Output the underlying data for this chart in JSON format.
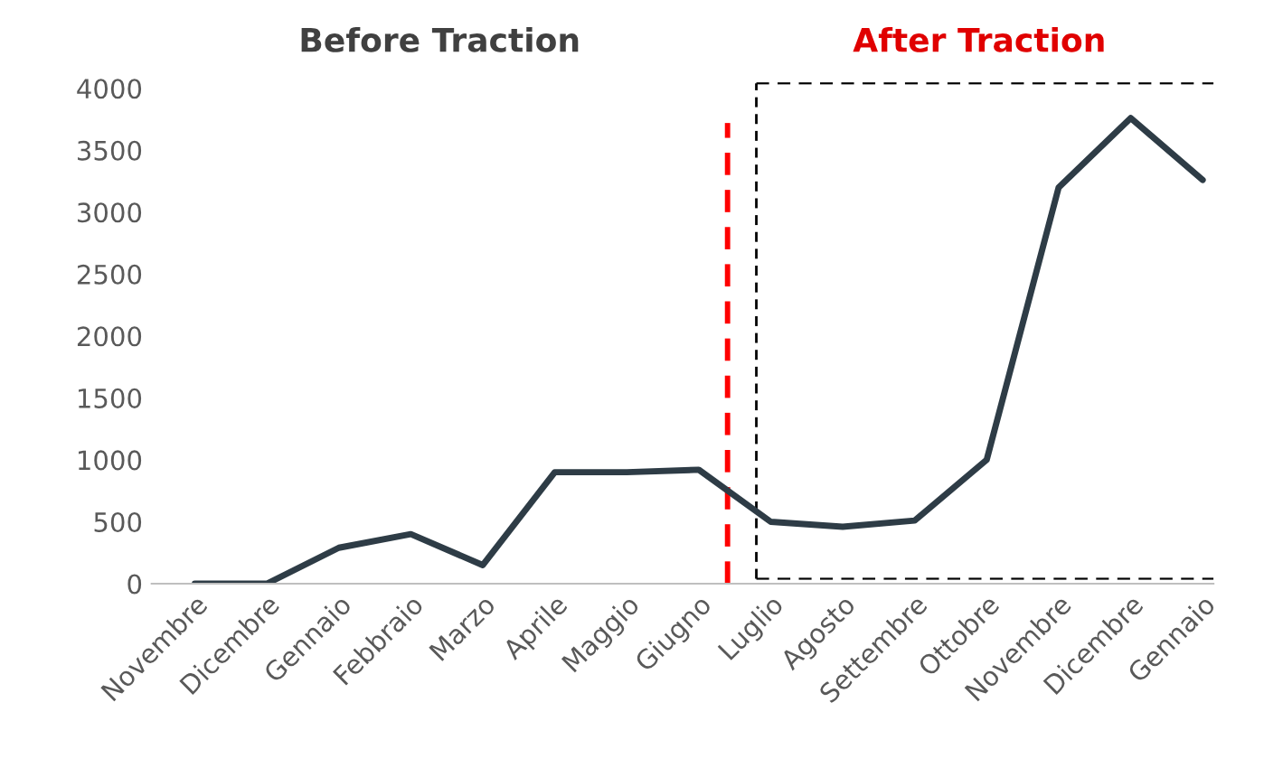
{
  "chart_data": {
    "type": "line",
    "categories": [
      "Novembre",
      "Dicembre",
      "Gennaio",
      "Febbraio",
      "Marzo",
      "Aprile",
      "Maggio",
      "Giugno",
      "Luglio",
      "Agosto",
      "Settembre",
      "Ottobre",
      "Novembre",
      "Dicembre",
      "Gennaio"
    ],
    "series": [
      {
        "color": "#2e3c46",
        "values": [
          0,
          0,
          290,
          400,
          150,
          900,
          900,
          920,
          500,
          460,
          510,
          1000,
          3200,
          3760,
          3260
        ]
      }
    ],
    "ylim": [
      0,
      4000
    ],
    "yticks": [
      0,
      500,
      1000,
      1500,
      2000,
      2500,
      3000,
      3500,
      4000
    ],
    "grid": false,
    "marker": "none",
    "line_style": "solid",
    "annotations": [
      "Before Traction",
      "After Traction"
    ]
  }
}
